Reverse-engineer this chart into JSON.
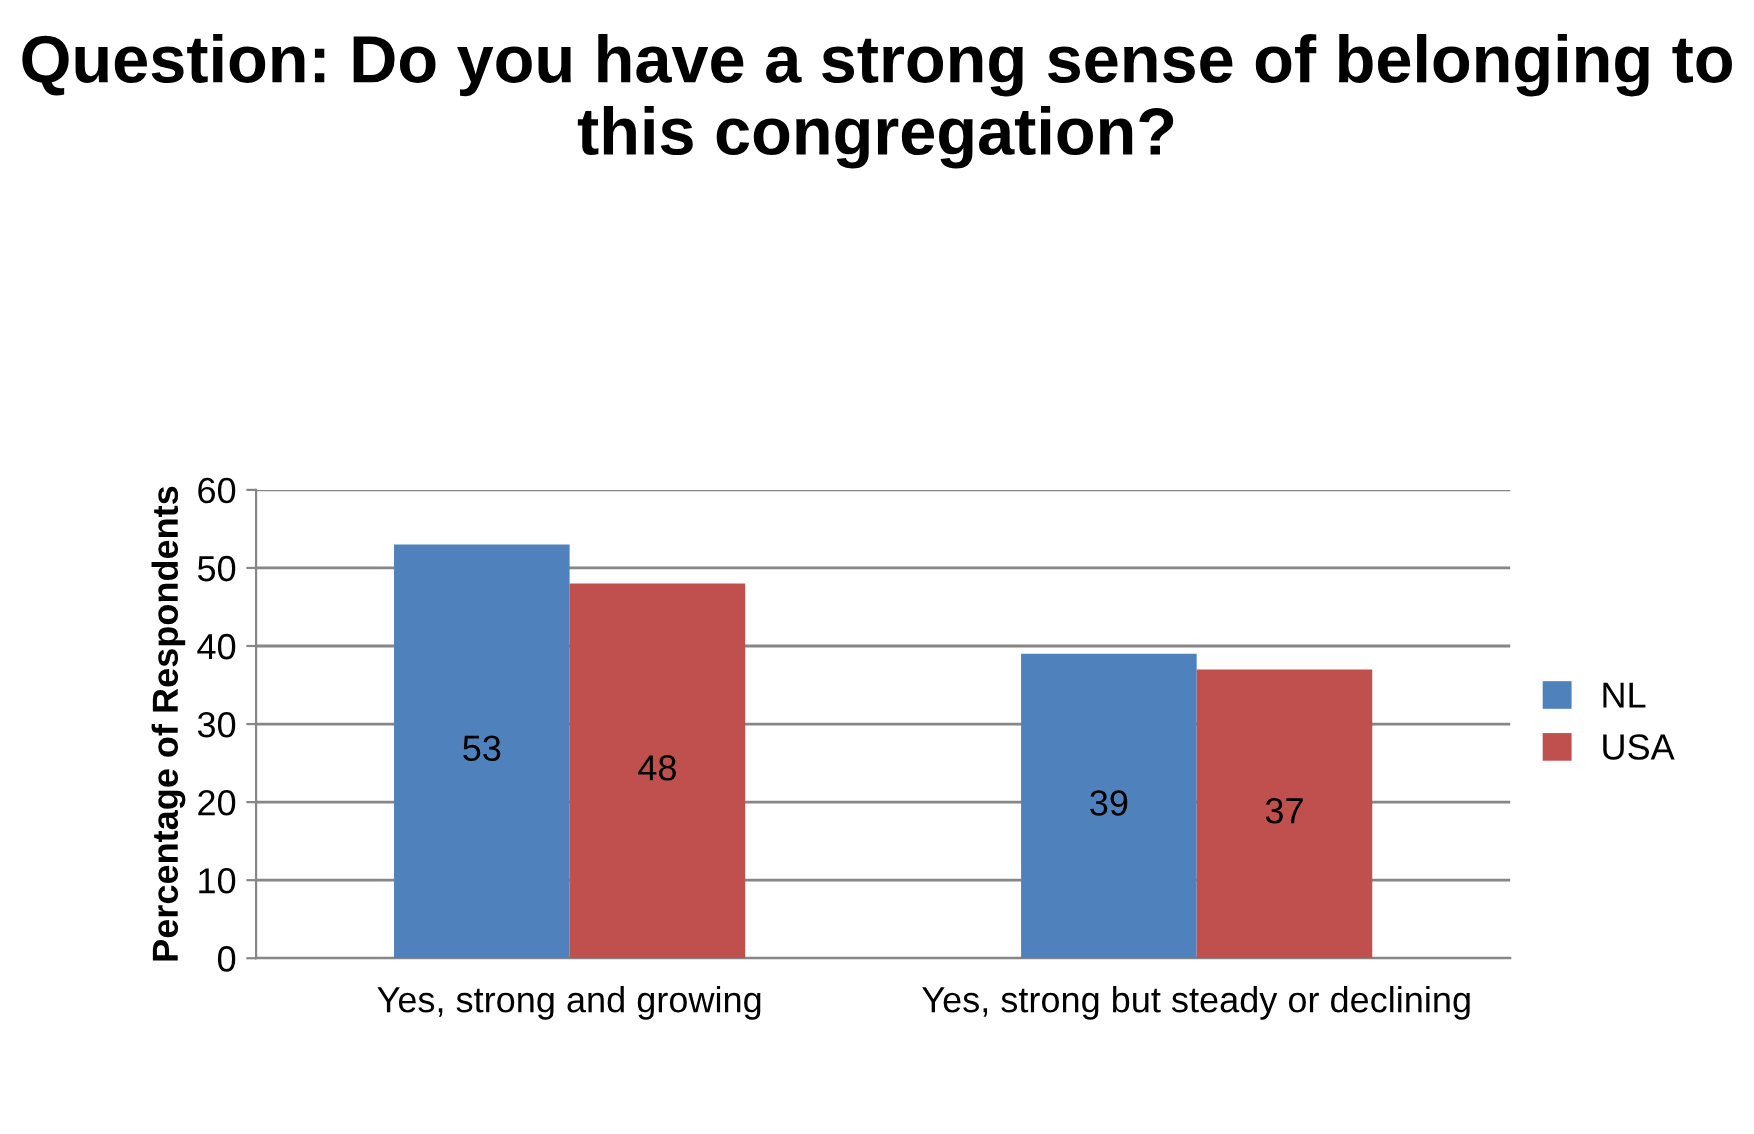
{
  "chart_data": {
    "type": "bar",
    "title": "Question: Do you have a strong sense of belonging to this congregation?",
    "ylabel": "Percentage of Respondents",
    "categories": [
      "Yes, strong and growing",
      "Yes, strong but steady or declining"
    ],
    "series": [
      {
        "name": "NL",
        "color": "#4f81bd",
        "values": [
          53,
          39
        ]
      },
      {
        "name": "USA",
        "color": "#c0504d",
        "values": [
          48,
          37
        ]
      }
    ],
    "ylim": [
      0,
      60
    ],
    "yticks": [
      0,
      10,
      20,
      30,
      40,
      50,
      60
    ],
    "grid": "y",
    "legend": "right",
    "data_labels": true
  }
}
